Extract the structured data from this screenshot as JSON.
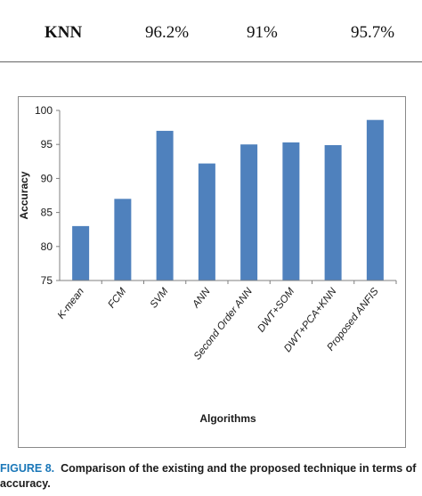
{
  "table": {
    "row": [
      "KNN",
      "96.2%",
      "91%",
      "95.7%"
    ]
  },
  "chart_data": {
    "type": "bar",
    "categories": [
      "K-mean",
      "FCM",
      "SVM",
      "ANN",
      "Second Order ANN",
      "DWT+SOM",
      "DWT+PCA+KNN",
      "Proposed ANFIS"
    ],
    "values": [
      83,
      87,
      97,
      92.2,
      95,
      95.3,
      94.9,
      98.6
    ],
    "ylim": [
      75,
      100
    ],
    "yticks": [
      "75",
      "80",
      "85",
      "90",
      "95",
      "100"
    ],
    "xlabel": "Algorithms",
    "ylabel": "Accuracy",
    "bar_color": "#4f81bd",
    "grid": false
  },
  "caption": {
    "label": "FIGURE 8.",
    "text": "Comparison of the existing and the proposed technique in terms of accuracy."
  }
}
